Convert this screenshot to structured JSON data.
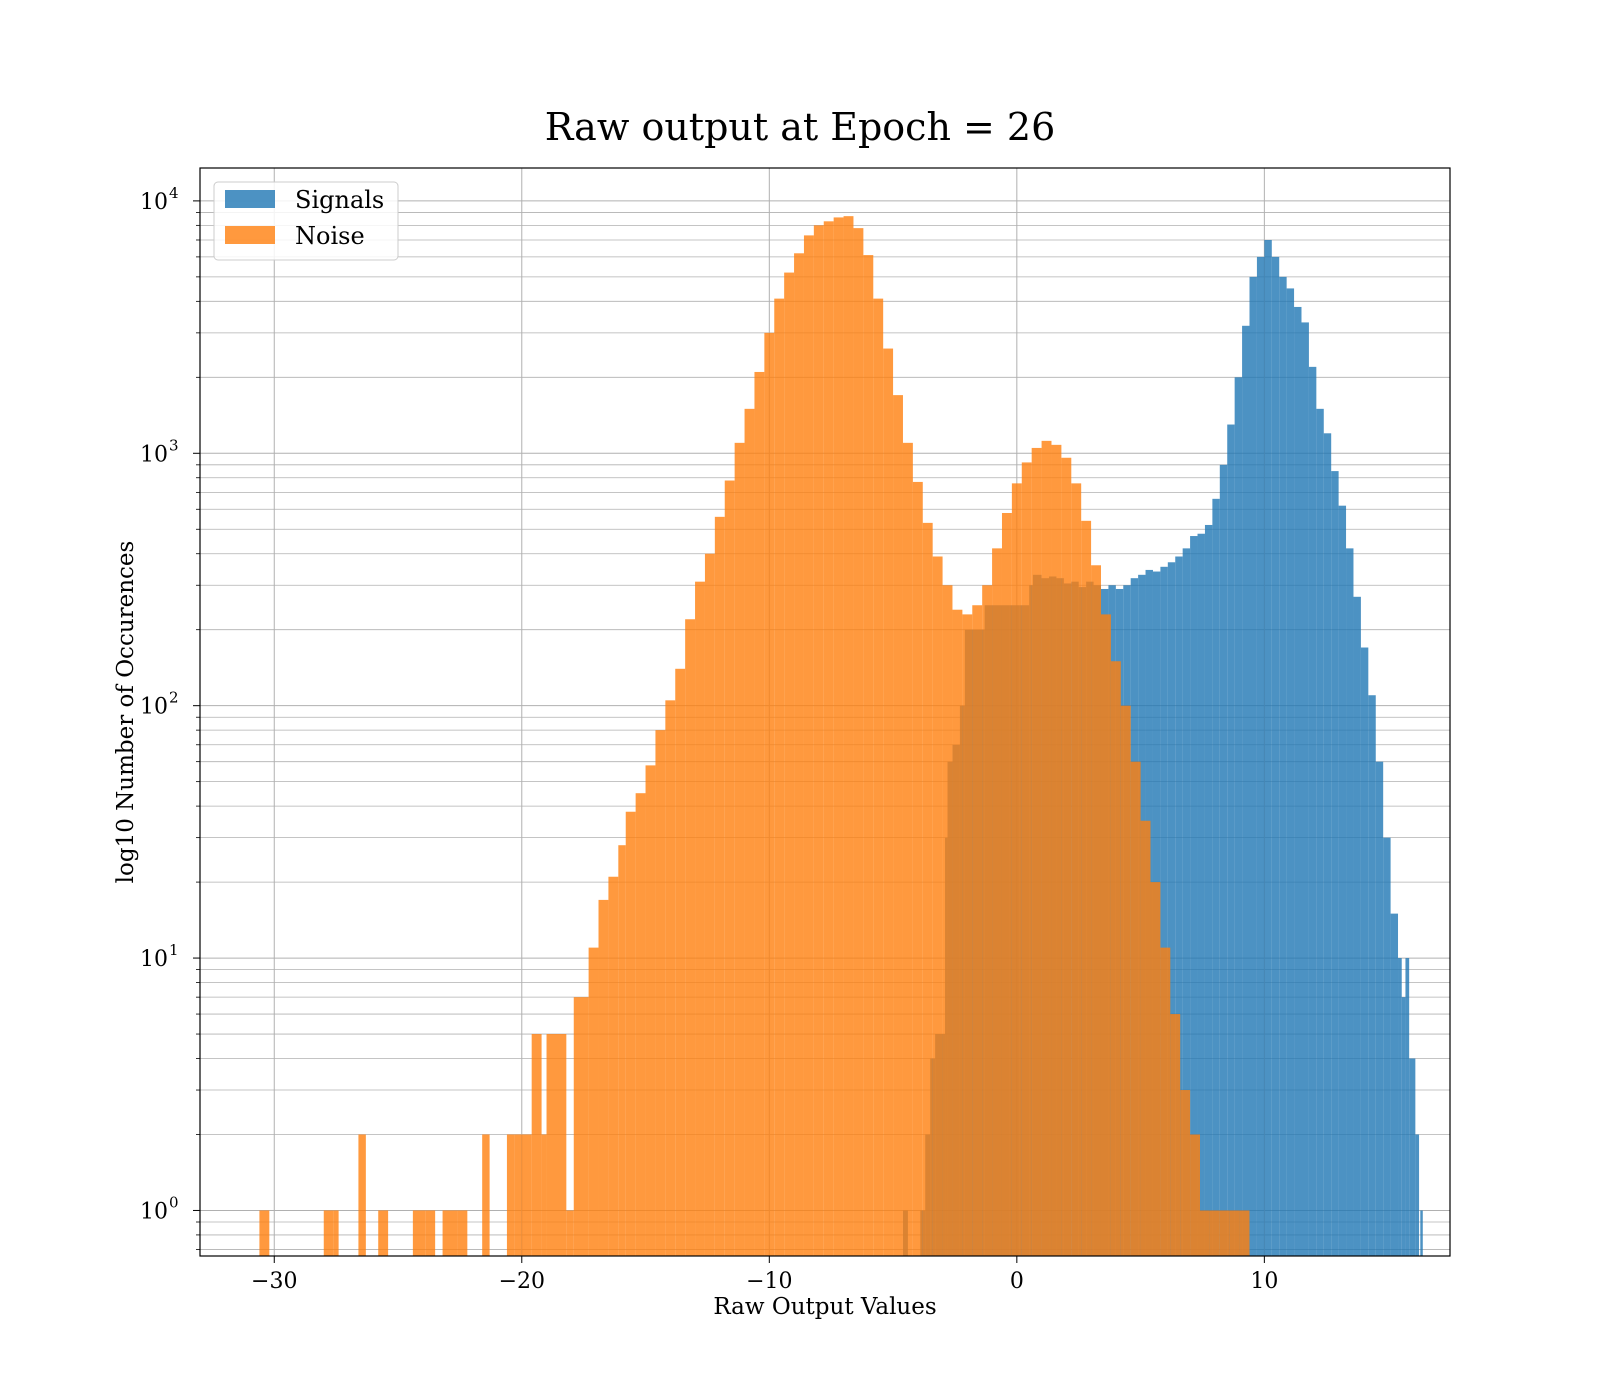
{
  "chart_data": {
    "type": "histogram",
    "title": "Raw output at Epoch = 26",
    "xlabel": "Raw Output Values",
    "ylabel": "log10 Number of Occurences",
    "xlim": [
      -33,
      17.5
    ],
    "ylim": [
      0.66,
      13500
    ],
    "yscale": "log",
    "grid": true,
    "legend_position": "top-left",
    "x_ticks": [
      {
        "value": -30,
        "label": "−30"
      },
      {
        "value": -20,
        "label": "−20"
      },
      {
        "value": -10,
        "label": "−10"
      },
      {
        "value": 0,
        "label": "0"
      },
      {
        "value": 10,
        "label": "10"
      }
    ],
    "y_ticks": [
      {
        "value": 1,
        "label": "10",
        "exp": "0"
      },
      {
        "value": 10,
        "label": "10",
        "exp": "1"
      },
      {
        "value": 100,
        "label": "10",
        "exp": "2"
      },
      {
        "value": 1000,
        "label": "10",
        "exp": "3"
      },
      {
        "value": 10000,
        "label": "10",
        "exp": "4"
      }
    ],
    "series": [
      {
        "name": "Signals",
        "color": "#1f77b4",
        "opacity": 0.8,
        "bins": [
          [
            -4.6,
            -4.4,
            1
          ],
          [
            -3.9,
            -3.7,
            1
          ],
          [
            -3.7,
            -3.5,
            2
          ],
          [
            -3.5,
            -3.3,
            4
          ],
          [
            -3.3,
            -2.9,
            5
          ],
          [
            -2.9,
            -2.8,
            30
          ],
          [
            -2.8,
            -2.6,
            60
          ],
          [
            -2.6,
            -2.3,
            70
          ],
          [
            -2.3,
            -2.1,
            100
          ],
          [
            -2.1,
            -1.3,
            200
          ],
          [
            -1.3,
            -0.3,
            250
          ],
          [
            -0.3,
            0.1,
            250
          ],
          [
            0.1,
            0.5,
            250
          ],
          [
            0.5,
            0.65,
            300
          ],
          [
            0.65,
            1.0,
            330
          ],
          [
            1.0,
            1.3,
            320
          ],
          [
            1.3,
            1.6,
            325
          ],
          [
            1.6,
            1.9,
            320
          ],
          [
            1.9,
            2.2,
            305
          ],
          [
            2.2,
            2.5,
            310
          ],
          [
            2.5,
            2.8,
            295
          ],
          [
            2.8,
            3.1,
            310
          ],
          [
            3.1,
            3.4,
            300
          ],
          [
            3.4,
            3.7,
            290
          ],
          [
            3.7,
            4.0,
            300
          ],
          [
            4.0,
            4.3,
            290
          ],
          [
            4.3,
            4.6,
            300
          ],
          [
            4.6,
            4.9,
            320
          ],
          [
            4.9,
            5.2,
            330
          ],
          [
            5.2,
            5.5,
            345
          ],
          [
            5.5,
            5.8,
            340
          ],
          [
            5.8,
            6.1,
            355
          ],
          [
            6.1,
            6.4,
            370
          ],
          [
            6.4,
            6.7,
            390
          ],
          [
            6.7,
            7.0,
            420
          ],
          [
            7.0,
            7.3,
            470
          ],
          [
            7.3,
            7.6,
            480
          ],
          [
            7.6,
            7.9,
            520
          ],
          [
            7.9,
            8.2,
            660
          ],
          [
            8.2,
            8.5,
            900
          ],
          [
            8.5,
            8.8,
            1300
          ],
          [
            8.8,
            9.1,
            2000
          ],
          [
            9.1,
            9.4,
            3200
          ],
          [
            9.4,
            9.7,
            5000
          ],
          [
            9.7,
            10.0,
            6000
          ],
          [
            10.0,
            10.3,
            7000
          ],
          [
            10.3,
            10.6,
            6000
          ],
          [
            10.6,
            10.9,
            5000
          ],
          [
            10.9,
            11.2,
            4500
          ],
          [
            11.2,
            11.5,
            3800
          ],
          [
            11.5,
            11.8,
            3300
          ],
          [
            11.8,
            12.1,
            2200
          ],
          [
            12.1,
            12.4,
            1500
          ],
          [
            12.4,
            12.7,
            1200
          ],
          [
            12.7,
            13.0,
            850
          ],
          [
            13.0,
            13.3,
            620
          ],
          [
            13.3,
            13.6,
            420
          ],
          [
            13.6,
            13.9,
            270
          ],
          [
            13.9,
            14.2,
            170
          ],
          [
            14.2,
            14.5,
            110
          ],
          [
            14.5,
            14.8,
            60
          ],
          [
            14.8,
            15.1,
            30
          ],
          [
            15.1,
            15.4,
            15
          ],
          [
            15.4,
            15.55,
            10
          ],
          [
            15.55,
            15.7,
            7
          ],
          [
            15.7,
            15.85,
            10
          ],
          [
            15.85,
            16.1,
            4
          ],
          [
            16.1,
            16.25,
            2
          ],
          [
            16.3,
            16.4,
            1
          ]
        ]
      },
      {
        "name": "Noise",
        "color": "#ff7f0e",
        "opacity": 0.8,
        "bins": [
          [
            -30.6,
            -30.2,
            1
          ],
          [
            -28.0,
            -27.6,
            1
          ],
          [
            -27.6,
            -27.4,
            1
          ],
          [
            -26.6,
            -26.3,
            2
          ],
          [
            -25.8,
            -25.4,
            1
          ],
          [
            -24.4,
            -23.9,
            1
          ],
          [
            -23.9,
            -23.5,
            1
          ],
          [
            -23.2,
            -22.6,
            1
          ],
          [
            -22.6,
            -22.2,
            1
          ],
          [
            -21.6,
            -21.3,
            2
          ],
          [
            -20.6,
            -20.3,
            2
          ],
          [
            -20.3,
            -20.0,
            2
          ],
          [
            -20.0,
            -19.6,
            2
          ],
          [
            -19.6,
            -19.2,
            5
          ],
          [
            -19.2,
            -19.0,
            2
          ],
          [
            -19.0,
            -18.2,
            5
          ],
          [
            -18.2,
            -17.9,
            1
          ],
          [
            -17.9,
            -17.3,
            7
          ],
          [
            -17.3,
            -16.9,
            11
          ],
          [
            -16.9,
            -16.5,
            17
          ],
          [
            -16.5,
            -16.1,
            21
          ],
          [
            -16.1,
            -15.8,
            28
          ],
          [
            -15.8,
            -15.4,
            38
          ],
          [
            -15.4,
            -15.0,
            45
          ],
          [
            -15.0,
            -14.6,
            58
          ],
          [
            -14.6,
            -14.2,
            80
          ],
          [
            -14.2,
            -13.8,
            105
          ],
          [
            -13.8,
            -13.4,
            140
          ],
          [
            -13.4,
            -13.0,
            220
          ],
          [
            -13.0,
            -12.6,
            310
          ],
          [
            -12.6,
            -12.2,
            400
          ],
          [
            -12.2,
            -11.8,
            560
          ],
          [
            -11.8,
            -11.4,
            780
          ],
          [
            -11.4,
            -11.0,
            1100
          ],
          [
            -11.0,
            -10.6,
            1500
          ],
          [
            -10.6,
            -10.2,
            2100
          ],
          [
            -10.2,
            -9.8,
            3000
          ],
          [
            -9.8,
            -9.4,
            4100
          ],
          [
            -9.4,
            -9.0,
            5200
          ],
          [
            -9.0,
            -8.6,
            6200
          ],
          [
            -8.6,
            -8.2,
            7300
          ],
          [
            -8.2,
            -7.8,
            8000
          ],
          [
            -7.8,
            -7.4,
            8300
          ],
          [
            -7.4,
            -7.0,
            8600
          ],
          [
            -7.0,
            -6.6,
            8700
          ],
          [
            -6.6,
            -6.2,
            7800
          ],
          [
            -6.2,
            -5.8,
            6100
          ],
          [
            -5.8,
            -5.4,
            4100
          ],
          [
            -5.4,
            -5.0,
            2600
          ],
          [
            -5.0,
            -4.6,
            1700
          ],
          [
            -4.6,
            -4.2,
            1100
          ],
          [
            -4.2,
            -3.8,
            770
          ],
          [
            -3.8,
            -3.4,
            530
          ],
          [
            -3.4,
            -3.0,
            390
          ],
          [
            -3.0,
            -2.6,
            300
          ],
          [
            -2.6,
            -2.2,
            240
          ],
          [
            -2.2,
            -1.8,
            230
          ],
          [
            -1.8,
            -1.4,
            250
          ],
          [
            -1.4,
            -1.0,
            300
          ],
          [
            -1.0,
            -0.6,
            420
          ],
          [
            -0.6,
            -0.2,
            580
          ],
          [
            -0.2,
            0.2,
            760
          ],
          [
            0.2,
            0.6,
            920
          ],
          [
            0.6,
            1.0,
            1050
          ],
          [
            1.0,
            1.4,
            1120
          ],
          [
            1.4,
            1.8,
            1080
          ],
          [
            1.8,
            2.2,
            960
          ],
          [
            2.2,
            2.6,
            760
          ],
          [
            2.6,
            3.0,
            540
          ],
          [
            3.0,
            3.4,
            360
          ],
          [
            3.4,
            3.8,
            230
          ],
          [
            3.8,
            4.2,
            150
          ],
          [
            4.2,
            4.6,
            100
          ],
          [
            4.6,
            5.0,
            60
          ],
          [
            5.0,
            5.4,
            35
          ],
          [
            5.4,
            5.8,
            20
          ],
          [
            5.8,
            6.2,
            11
          ],
          [
            6.2,
            6.6,
            6
          ],
          [
            6.6,
            7.0,
            3
          ],
          [
            7.0,
            7.4,
            2
          ],
          [
            7.4,
            7.8,
            1
          ],
          [
            7.8,
            8.2,
            1
          ],
          [
            8.2,
            8.6,
            1
          ],
          [
            8.6,
            9.0,
            1
          ],
          [
            9.0,
            9.4,
            1
          ]
        ]
      }
    ]
  }
}
